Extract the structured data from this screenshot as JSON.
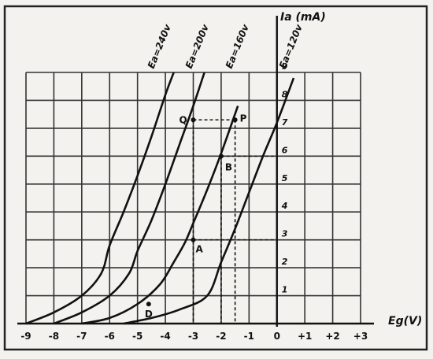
{
  "chart_data": {
    "type": "line",
    "xlabel": "Eg(V)",
    "ylabel": "Ia (mA)",
    "xlim": [
      -9,
      3
    ],
    "ylim": [
      0,
      9
    ],
    "grid": true,
    "x_ticks": [
      "-9",
      "-8",
      "-7",
      "-6",
      "-5",
      "-4",
      "-3",
      "-2",
      "-1",
      "0",
      "+1",
      "+2",
      "+3"
    ],
    "y_ticks": [
      "1",
      "2",
      "3",
      "4",
      "5",
      "6",
      "7",
      "8",
      "9"
    ],
    "series": [
      {
        "name": "Ea=240v",
        "x": [
          -9,
          -8,
          -7,
          -6.3,
          -6,
          -5.5,
          -5,
          -4.5,
          -4,
          -3.7
        ],
        "y": [
          0,
          0.4,
          1,
          1.8,
          2.8,
          4,
          5.3,
          6.7,
          8.2,
          9
        ]
      },
      {
        "name": "Ea=200v",
        "x": [
          -8,
          -7,
          -6,
          -5.3,
          -5,
          -4.5,
          -4,
          -3.5,
          -3,
          -2.6
        ],
        "y": [
          0,
          0.4,
          1,
          1.8,
          2.6,
          3.7,
          5,
          6.4,
          7.8,
          9
        ]
      },
      {
        "name": "Ea=160v",
        "x": [
          -7,
          -6,
          -5,
          -4.2,
          -3.7,
          -3.3,
          -3,
          -2.5,
          -2,
          -1.4
        ],
        "y": [
          0,
          0.2,
          0.7,
          1.4,
          2.2,
          2.9,
          3.6,
          4.8,
          6.1,
          7.8
        ]
      },
      {
        "name": "Ea=120v",
        "x": [
          -5.5,
          -4.5,
          -3.5,
          -2.5,
          -2,
          -1.5,
          -1,
          -0.5,
          0,
          0.6
        ],
        "y": [
          0,
          0.2,
          0.5,
          1,
          2.2,
          3.4,
          4.7,
          6,
          7.2,
          8.8
        ]
      }
    ],
    "points": [
      {
        "label": "Q",
        "x": -3,
        "y": 7.3
      },
      {
        "label": "P",
        "x": -1.5,
        "y": 7.3
      },
      {
        "label": "B",
        "x": -2,
        "y": 6
      },
      {
        "label": "A",
        "x": -3,
        "y": 3
      },
      {
        "label": "D",
        "x": -4.6,
        "y": 0.7
      }
    ]
  }
}
